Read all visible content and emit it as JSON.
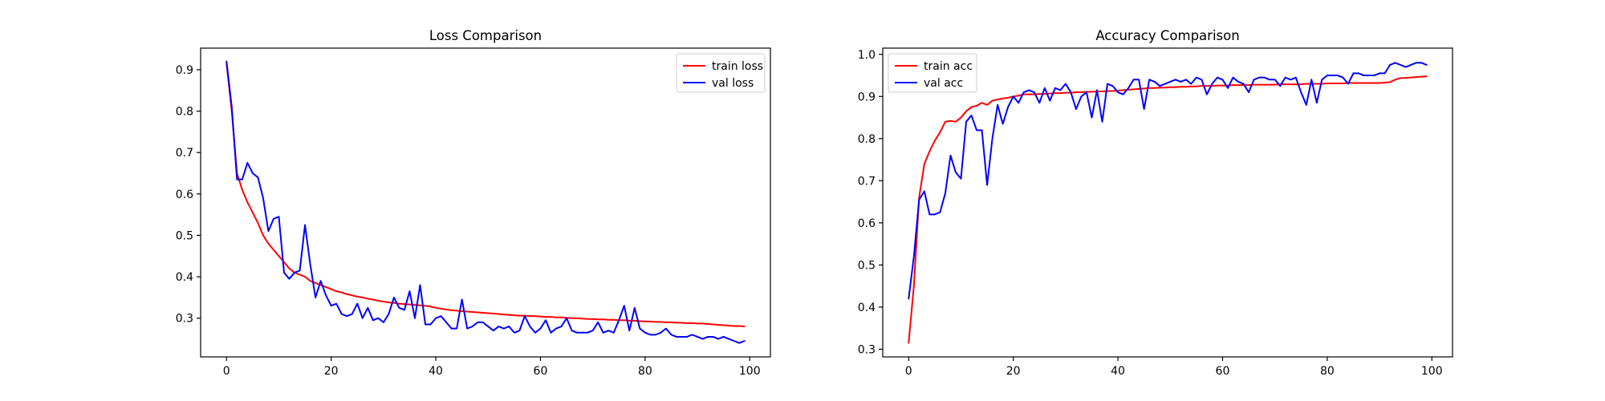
{
  "chart_data": [
    {
      "type": "line",
      "title": "Loss Comparison",
      "xlabel": "",
      "ylabel": "",
      "xlim": [
        -4.95,
        103.95
      ],
      "ylim": [
        0.2065,
        0.9521
      ],
      "xticks": [
        0,
        20,
        40,
        60,
        80,
        100
      ],
      "yticks": [
        0.3,
        0.4,
        0.5,
        0.6,
        0.7,
        0.8,
        0.9
      ],
      "grid": false,
      "legend": "top-right",
      "series": [
        {
          "name": "train loss",
          "color": "#ff0000",
          "x": [
            0,
            1,
            2,
            3,
            4,
            5,
            6,
            7,
            8,
            9,
            10,
            11,
            12,
            13,
            14,
            15,
            16,
            17,
            18,
            19,
            20,
            21,
            22,
            23,
            24,
            25,
            26,
            27,
            28,
            29,
            30,
            31,
            32,
            33,
            34,
            35,
            36,
            37,
            38,
            39,
            40,
            41,
            42,
            43,
            44,
            45,
            46,
            47,
            48,
            49,
            50,
            51,
            52,
            53,
            54,
            55,
            56,
            57,
            58,
            59,
            60,
            61,
            62,
            63,
            64,
            65,
            66,
            67,
            68,
            69,
            70,
            71,
            72,
            73,
            74,
            75,
            76,
            77,
            78,
            79,
            80,
            81,
            82,
            83,
            84,
            85,
            86,
            87,
            88,
            89,
            90,
            91,
            92,
            93,
            94,
            95,
            96,
            97,
            98,
            99
          ],
          "values": [
            0.915,
            0.8,
            0.65,
            0.61,
            0.58,
            0.555,
            0.53,
            0.5,
            0.48,
            0.465,
            0.45,
            0.435,
            0.42,
            0.41,
            0.405,
            0.4,
            0.39,
            0.385,
            0.38,
            0.375,
            0.37,
            0.365,
            0.362,
            0.358,
            0.355,
            0.352,
            0.35,
            0.347,
            0.345,
            0.342,
            0.34,
            0.338,
            0.337,
            0.335,
            0.334,
            0.333,
            0.332,
            0.331,
            0.33,
            0.328,
            0.325,
            0.323,
            0.321,
            0.319,
            0.318,
            0.317,
            0.316,
            0.315,
            0.314,
            0.313,
            0.312,
            0.311,
            0.31,
            0.309,
            0.308,
            0.307,
            0.306,
            0.306,
            0.305,
            0.305,
            0.304,
            0.303,
            0.303,
            0.302,
            0.302,
            0.301,
            0.3,
            0.3,
            0.299,
            0.298,
            0.298,
            0.297,
            0.297,
            0.296,
            0.296,
            0.295,
            0.295,
            0.294,
            0.294,
            0.293,
            0.292,
            0.292,
            0.291,
            0.291,
            0.29,
            0.29,
            0.289,
            0.289,
            0.288,
            0.288,
            0.287,
            0.287,
            0.286,
            0.285,
            0.284,
            0.283,
            0.282,
            0.281,
            0.281,
            0.28
          ]
        },
        {
          "name": "val loss",
          "color": "#0000ff",
          "x": [
            0,
            1,
            2,
            3,
            4,
            5,
            6,
            7,
            8,
            9,
            10,
            11,
            12,
            13,
            14,
            15,
            16,
            17,
            18,
            19,
            20,
            21,
            22,
            23,
            24,
            25,
            26,
            27,
            28,
            29,
            30,
            31,
            32,
            33,
            34,
            35,
            36,
            37,
            38,
            39,
            40,
            41,
            42,
            43,
            44,
            45,
            46,
            47,
            48,
            49,
            50,
            51,
            52,
            53,
            54,
            55,
            56,
            57,
            58,
            59,
            60,
            61,
            62,
            63,
            64,
            65,
            66,
            67,
            68,
            69,
            70,
            71,
            72,
            73,
            74,
            75,
            76,
            77,
            78,
            79,
            80,
            81,
            82,
            83,
            84,
            85,
            86,
            87,
            88,
            89,
            90,
            91,
            92,
            93,
            94,
            95,
            96,
            97,
            98,
            99
          ],
          "values": [
            0.92,
            0.81,
            0.635,
            0.635,
            0.675,
            0.65,
            0.64,
            0.59,
            0.51,
            0.54,
            0.545,
            0.41,
            0.395,
            0.41,
            0.415,
            0.525,
            0.43,
            0.35,
            0.39,
            0.355,
            0.33,
            0.335,
            0.31,
            0.305,
            0.31,
            0.335,
            0.3,
            0.325,
            0.295,
            0.3,
            0.29,
            0.31,
            0.35,
            0.325,
            0.32,
            0.365,
            0.3,
            0.38,
            0.285,
            0.285,
            0.3,
            0.305,
            0.29,
            0.275,
            0.275,
            0.345,
            0.275,
            0.28,
            0.29,
            0.29,
            0.28,
            0.27,
            0.28,
            0.275,
            0.28,
            0.265,
            0.27,
            0.305,
            0.28,
            0.265,
            0.275,
            0.295,
            0.265,
            0.275,
            0.28,
            0.3,
            0.27,
            0.265,
            0.265,
            0.265,
            0.27,
            0.29,
            0.265,
            0.27,
            0.265,
            0.295,
            0.33,
            0.27,
            0.325,
            0.275,
            0.265,
            0.26,
            0.26,
            0.265,
            0.275,
            0.26,
            0.255,
            0.255,
            0.255,
            0.26,
            0.255,
            0.25,
            0.255,
            0.255,
            0.25,
            0.255,
            0.25,
            0.245,
            0.24,
            0.245
          ]
        }
      ]
    },
    {
      "type": "line",
      "title": "Accuracy Comparison",
      "xlabel": "",
      "ylabel": "",
      "xlim": [
        -4.95,
        103.95
      ],
      "ylim": [
        0.2818,
        1.0148
      ],
      "xticks": [
        0,
        20,
        40,
        60,
        80,
        100
      ],
      "yticks": [
        0.3,
        0.4,
        0.5,
        0.6,
        0.7,
        0.8,
        0.9,
        1.0
      ],
      "grid": false,
      "legend": "top-left",
      "series": [
        {
          "name": "train acc",
          "color": "#ff0000",
          "x": [
            0,
            1,
            2,
            3,
            4,
            5,
            6,
            7,
            8,
            9,
            10,
            11,
            12,
            13,
            14,
            15,
            16,
            17,
            18,
            19,
            20,
            21,
            22,
            23,
            24,
            25,
            26,
            27,
            28,
            29,
            30,
            31,
            32,
            33,
            34,
            35,
            36,
            37,
            38,
            39,
            40,
            41,
            42,
            43,
            44,
            45,
            46,
            47,
            48,
            49,
            50,
            51,
            52,
            53,
            54,
            55,
            56,
            57,
            58,
            59,
            60,
            61,
            62,
            63,
            64,
            65,
            66,
            67,
            68,
            69,
            70,
            71,
            72,
            73,
            74,
            75,
            76,
            77,
            78,
            79,
            80,
            81,
            82,
            83,
            84,
            85,
            86,
            87,
            88,
            89,
            90,
            91,
            92,
            93,
            94,
            95,
            96,
            97,
            98,
            99
          ],
          "values": [
            0.315,
            0.45,
            0.66,
            0.74,
            0.77,
            0.795,
            0.815,
            0.84,
            0.842,
            0.84,
            0.85,
            0.865,
            0.875,
            0.878,
            0.885,
            0.88,
            0.89,
            0.893,
            0.895,
            0.897,
            0.9,
            0.902,
            0.905,
            0.905,
            0.905,
            0.906,
            0.906,
            0.907,
            0.908,
            0.908,
            0.909,
            0.909,
            0.91,
            0.91,
            0.911,
            0.911,
            0.912,
            0.912,
            0.913,
            0.913,
            0.914,
            0.915,
            0.916,
            0.917,
            0.918,
            0.919,
            0.92,
            0.92,
            0.921,
            0.921,
            0.922,
            0.922,
            0.923,
            0.923,
            0.924,
            0.924,
            0.925,
            0.925,
            0.925,
            0.926,
            0.926,
            0.926,
            0.927,
            0.927,
            0.927,
            0.927,
            0.928,
            0.928,
            0.928,
            0.928,
            0.928,
            0.929,
            0.929,
            0.929,
            0.929,
            0.929,
            0.93,
            0.93,
            0.93,
            0.93,
            0.931,
            0.931,
            0.931,
            0.931,
            0.932,
            0.932,
            0.932,
            0.932,
            0.932,
            0.932,
            0.932,
            0.933,
            0.934,
            0.94,
            0.944,
            0.944,
            0.945,
            0.946,
            0.947,
            0.948
          ]
        },
        {
          "name": "val acc",
          "color": "#0000ff",
          "x": [
            0,
            1,
            2,
            3,
            4,
            5,
            6,
            7,
            8,
            9,
            10,
            11,
            12,
            13,
            14,
            15,
            16,
            17,
            18,
            19,
            20,
            21,
            22,
            23,
            24,
            25,
            26,
            27,
            28,
            29,
            30,
            31,
            32,
            33,
            34,
            35,
            36,
            37,
            38,
            39,
            40,
            41,
            42,
            43,
            44,
            45,
            46,
            47,
            48,
            49,
            50,
            51,
            52,
            53,
            54,
            55,
            56,
            57,
            58,
            59,
            60,
            61,
            62,
            63,
            64,
            65,
            66,
            67,
            68,
            69,
            70,
            71,
            72,
            73,
            74,
            75,
            76,
            77,
            78,
            79,
            80,
            81,
            82,
            83,
            84,
            85,
            86,
            87,
            88,
            89,
            90,
            91,
            92,
            93,
            94,
            95,
            96,
            97,
            98,
            99
          ],
          "values": [
            0.42,
            0.52,
            0.655,
            0.675,
            0.62,
            0.62,
            0.625,
            0.67,
            0.76,
            0.72,
            0.705,
            0.84,
            0.855,
            0.82,
            0.82,
            0.69,
            0.8,
            0.88,
            0.835,
            0.875,
            0.9,
            0.885,
            0.91,
            0.915,
            0.91,
            0.885,
            0.92,
            0.89,
            0.92,
            0.915,
            0.93,
            0.91,
            0.87,
            0.9,
            0.91,
            0.85,
            0.915,
            0.84,
            0.93,
            0.925,
            0.91,
            0.905,
            0.92,
            0.94,
            0.94,
            0.87,
            0.94,
            0.935,
            0.925,
            0.93,
            0.935,
            0.94,
            0.935,
            0.94,
            0.93,
            0.945,
            0.94,
            0.905,
            0.93,
            0.945,
            0.94,
            0.92,
            0.945,
            0.935,
            0.93,
            0.91,
            0.94,
            0.945,
            0.945,
            0.94,
            0.94,
            0.925,
            0.945,
            0.94,
            0.945,
            0.91,
            0.88,
            0.94,
            0.885,
            0.94,
            0.95,
            0.95,
            0.95,
            0.945,
            0.93,
            0.955,
            0.955,
            0.95,
            0.95,
            0.95,
            0.955,
            0.955,
            0.975,
            0.98,
            0.975,
            0.97,
            0.975,
            0.98,
            0.98,
            0.975
          ]
        }
      ]
    }
  ]
}
